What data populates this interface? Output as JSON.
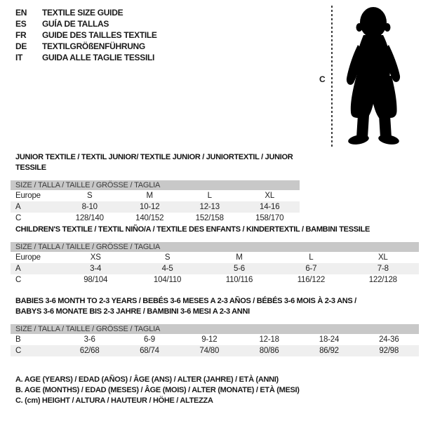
{
  "header": {
    "languages": [
      {
        "code": "EN",
        "title": "TEXTILE SIZE GUIDE"
      },
      {
        "code": "ES",
        "title": "GUÍA DE TALLAS"
      },
      {
        "code": "FR",
        "title": "GUIDE DES TAILLES TEXTILE"
      },
      {
        "code": "DE",
        "title": "TEXTILGRÖßENFÜHRUNG"
      },
      {
        "code": "IT",
        "title": "GUIDA ALLE TAGLIE TESSILI"
      }
    ],
    "figure": {
      "label": "C",
      "icon": "toddler-silhouette-icon"
    }
  },
  "tables": [
    {
      "title_lines": [
        "JUNIOR TEXTILE / TEXTIL JUNIOR/ TEXTILE JUNIOR / JUNIORTEXTIL / JUNIOR TESSILE"
      ],
      "size_header": "SIZE / TALLA / TAILLE / GRÖSSE / TAGLIA",
      "body_rows": [
        {
          "label": "Europe",
          "values": [
            "S",
            "M",
            "L",
            "XL"
          ]
        },
        {
          "label": "A",
          "values": [
            "8-10",
            "10-12",
            "12-13",
            "14-16"
          ]
        },
        {
          "label": "C",
          "values": [
            "128/140",
            "140/152",
            "152/158",
            "158/170"
          ]
        }
      ]
    },
    {
      "title_lines": [
        "CHILDREN'S TEXTILE / TEXTIL NIÑO/A / TEXTILE DES ENFANTS / KINDERTEXTIL / BAMBINI TESSILE"
      ],
      "size_header": "SIZE / TALLA / TAILLE / GRÖSSE / TAGLIA",
      "body_rows": [
        {
          "label": "Europe",
          "values": [
            "XS",
            "S",
            "M",
            "L",
            "XL"
          ]
        },
        {
          "label": "A",
          "values": [
            "3-4",
            "4-5",
            "5-6",
            "6-7",
            "7-8"
          ]
        },
        {
          "label": "C",
          "values": [
            "98/104",
            "104/110",
            "110/116",
            "116/122",
            "122/128"
          ]
        }
      ]
    },
    {
      "title_lines": [
        "BABIES 3-6 MONTH TO 2-3 YEARS / BEBÉS 3-6 MESES A 2-3 AÑOS / BÉBÉS 3-6 MOIS À 2-3 ANS /",
        "BABYS 3-6 MONATE BIS 2-3 JAHRE / BAMBINI 3-6 MESI A 2-3 ANNI"
      ],
      "size_header": "SIZE / TALLA / TAILLE / GRÖSSE / TAGLIA",
      "body_rows": [
        {
          "label": "B",
          "values": [
            "3-6",
            "6-9",
            "9-12",
            "12-18",
            "18-24",
            "24-36"
          ]
        },
        {
          "label": "C",
          "values": [
            "62/68",
            "68/74",
            "74/80",
            "80/86",
            "86/92",
            "92/98"
          ]
        }
      ]
    }
  ],
  "notes": [
    "A. AGE (YEARS) / EDAD (AÑOS) / ÂGE (ANS) / ALTER (JAHRE) / ETÀ (ANNI)",
    "B. AGE (MONTHS) / EDAD (MESES) / ÂGE (MOIS) / ALTER (MONATE) / ETÀ (MESI)",
    "C. (cm) HEIGHT / ALTURA / HAUTEUR / HÖHE / ALTEZZA"
  ],
  "colors": {
    "size_header_bg": "#c8c8c8",
    "row_alt_bg": "#efefef",
    "text": "#1a1a1a"
  }
}
